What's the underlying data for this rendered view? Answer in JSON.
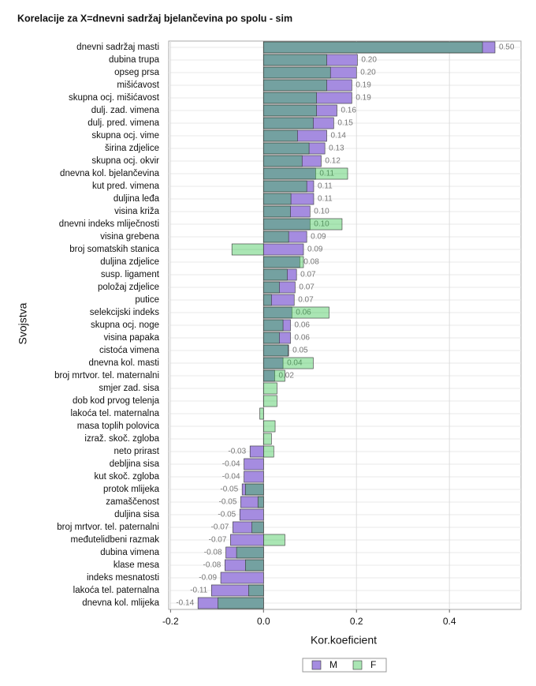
{
  "chart_data": {
    "type": "bar",
    "orientation": "horizontal",
    "title": "Korelacije za X=dnevni sadržaj bjelančevina po spolu - sim",
    "x_label": "Kor.koeficient",
    "y_label": "Svojstva",
    "categories": [
      "dnevni sadržaj masti",
      "dubina trupa",
      "opseg prsa",
      "mišićavost",
      "skupna ocj. mišićavost",
      "dulj. zad. vimena",
      "dulj. pred. vimena",
      "skupna ocj. vime",
      "širina zdjelice",
      "skupna ocj. okvir",
      "dnevna kol. bjelančevina",
      "kut pred. vimena",
      "duljina leđa",
      "visina križa",
      "dnevni indeks mliječnosti",
      "visina grebena",
      "broj somatskih stanica",
      "duljina zdjelice",
      "susp. ligament",
      "položaj zdjelice",
      "putice",
      "selekcijski indeks",
      "skupna ocj. noge",
      "visina papaka",
      "cistoća vimena",
      "dnevna kol. masti",
      "broj mrtvor. tel. maternalni",
      "smjer zad. sisa",
      "dob kod prvog telenja",
      "lakoća tel. maternalna",
      "masa toplih polovica",
      "izraž. skoč. zgloba",
      "neto prirast",
      "debljina sisa",
      "kut skoč. zgloba",
      "protok mlijeka",
      "zamaščenost",
      "duljina sisa",
      "broj mrtvor. tel. paternalni",
      "međutelidbeni razmak",
      "dubina vimena",
      "klase mesa",
      "indeks mesnatosti",
      "lakoća tel. paternalna",
      "dnevna kol. mlijeka"
    ],
    "series": [
      {
        "name": "M",
        "color": "#a58ce0",
        "values": [
          0.498,
          0.202,
          0.2,
          0.19,
          0.19,
          0.158,
          0.151,
          0.136,
          0.132,
          0.124,
          0.112,
          0.108,
          0.108,
          0.1,
          0.1,
          0.093,
          0.086,
          0.078,
          0.071,
          0.068,
          0.066,
          0.061,
          0.058,
          0.058,
          0.054,
          0.042,
          0.024,
          null,
          null,
          null,
          null,
          null,
          -0.029,
          -0.042,
          -0.042,
          -0.046,
          -0.049,
          -0.051,
          -0.066,
          -0.071,
          -0.081,
          -0.083,
          -0.092,
          -0.112,
          -0.141
        ],
        "value_labels": [
          "0.50",
          "0.20",
          "0.20",
          "0.19",
          "0.19",
          "0.16",
          "0.15",
          "0.14",
          "0.13",
          "0.12",
          "0.11",
          "0.11",
          "0.11",
          "0.10",
          "0.10",
          "0.09",
          "0.09",
          "0.08",
          "0.07",
          "0.07",
          "0.07",
          "0.06",
          "0.06",
          "0.06",
          "0.05",
          "0.04",
          "0.02",
          null,
          null,
          null,
          null,
          null,
          "-0.03",
          "-0.04",
          "-0.04",
          "-0.05",
          "-0.05",
          "-0.05",
          "-0.07",
          "-0.07",
          "-0.08",
          "-0.08",
          "-0.09",
          "-0.11",
          "-0.14"
        ]
      },
      {
        "name": "F",
        "color": "#2ac043",
        "values": [
          0.471,
          0.136,
          0.144,
          0.136,
          0.114,
          0.114,
          0.107,
          0.073,
          0.098,
          0.083,
          0.181,
          0.093,
          0.059,
          0.058,
          0.169,
          0.054,
          -0.068,
          0.086,
          0.051,
          0.034,
          0.017,
          0.141,
          0.042,
          0.034,
          0.053,
          0.107,
          0.046,
          0.029,
          0.029,
          -0.008,
          0.025,
          0.017,
          0.022,
          null,
          null,
          -0.039,
          -0.012,
          null,
          -0.025,
          0.046,
          -0.058,
          -0.039,
          null,
          -0.032,
          -0.098
        ]
      }
    ],
    "xlim": [
      -0.204,
      0.554
    ],
    "xticks": [
      -0.2,
      {
        "value": 0,
        "label": "0.0"
      },
      0.2,
      0.4
    ],
    "grid": true,
    "legend": "bottom"
  }
}
